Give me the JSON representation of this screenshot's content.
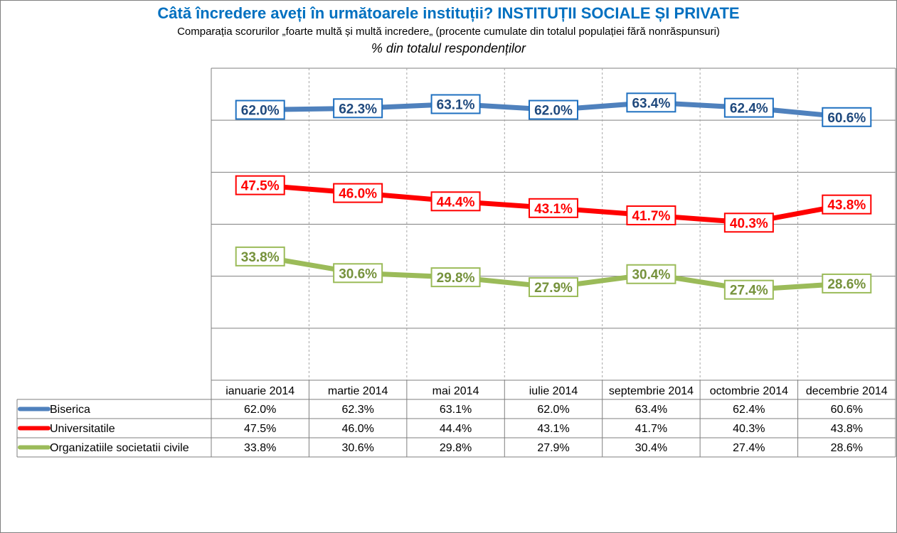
{
  "title": "Câtă încredere aveți în următoarele instituții? INSTITUȚII SOCIALE  ȘI PRIVATE",
  "subtitle": "Comparația scorurilor „foarte multă  și multă  incredere„ (procente cumulate din totalul populației fără nonrăspunsuri)",
  "units": "% din totalul respondenților",
  "chart_data": {
    "type": "line",
    "categories": [
      "ianuarie 2014",
      "martie 2014",
      "mai 2014",
      "iulie 2014",
      "septembrie 2014",
      "octombrie 2014",
      "decembrie 2014"
    ],
    "series": [
      {
        "name": "Biserica",
        "color": "#4f81bd",
        "values": [
          62.0,
          62.3,
          63.1,
          62.0,
          63.4,
          62.4,
          60.6
        ],
        "labels": [
          "62.0%",
          "62.3%",
          "63.1%",
          "62.0%",
          "63.4%",
          "62.4%",
          "60.6%"
        ]
      },
      {
        "name": "Universitatile",
        "color": "#ff0000",
        "values": [
          47.5,
          46.0,
          44.4,
          43.1,
          41.7,
          40.3,
          43.8
        ],
        "labels": [
          "47.5%",
          "46.0%",
          "44.4%",
          "43.1%",
          "41.7%",
          "40.3%",
          "43.8%"
        ]
      },
      {
        "name": "Organizatiile societatii civile",
        "color": "#9bbb59",
        "values": [
          33.8,
          30.6,
          29.8,
          27.9,
          30.4,
          27.4,
          28.6
        ],
        "labels": [
          "33.8%",
          "30.6%",
          "29.8%",
          "27.9%",
          "30.4%",
          "27.4%",
          "28.6%"
        ]
      }
    ],
    "label_colors": [
      "#1f497d",
      "#ff0000",
      "#76923c"
    ],
    "ylim": [
      10,
      70
    ],
    "grid": true,
    "legend": "data-table"
  }
}
